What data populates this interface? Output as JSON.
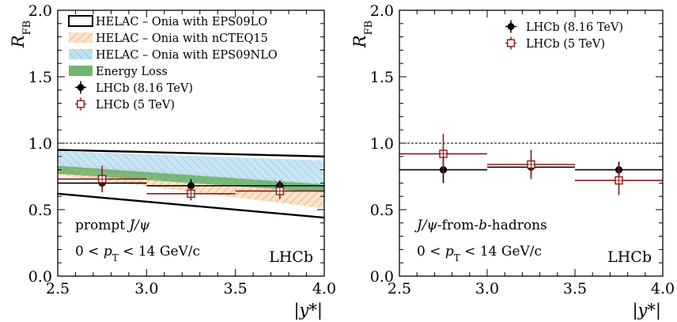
{
  "chart_data": [
    {
      "type": "scatter",
      "panel": "left",
      "ylabel": "R_FB",
      "xlabel": "|y*|",
      "xlim": [
        2.5,
        4.0
      ],
      "ylim": [
        0.0,
        2.0
      ],
      "xticks": [
        "2.5",
        "3.0",
        "3.5",
        "4.0"
      ],
      "yticks": [
        "0.0",
        "0.5",
        "1.0",
        "1.5",
        "2.0"
      ],
      "reference_line": 1.0,
      "legend": [
        {
          "label": "HELAC – Onia with EPS09LO",
          "style": "band-outline"
        },
        {
          "label": "HELAC – Onia with nCTEQ15",
          "style": "hatch-orange"
        },
        {
          "label": "HELAC – Onia with EPS09NLO",
          "style": "hatch-blue"
        },
        {
          "label": "Energy Loss",
          "style": "band-green"
        },
        {
          "label": "LHCb (8.16 TeV)",
          "style": "marker-filled"
        },
        {
          "label": "LHCb (5 TeV)",
          "style": "marker-open"
        }
      ],
      "annotations": [
        "prompt J/ψ",
        "0 < pT < 14 GeV/c",
        "LHCb"
      ],
      "bands": [
        {
          "name": "HELAC – Onia with EPS09LO",
          "x": [
            2.5,
            4.0
          ],
          "upper": [
            0.95,
            0.9
          ],
          "lower": [
            0.62,
            0.44
          ],
          "color": "#000000"
        },
        {
          "name": "HELAC – Onia with nCTEQ15",
          "x": [
            2.5,
            4.0
          ],
          "upper": [
            0.86,
            0.7
          ],
          "lower": [
            0.76,
            0.51
          ],
          "color": "#f0b27a"
        },
        {
          "name": "HELAC – Onia with EPS09NLO",
          "x": [
            2.5,
            4.0
          ],
          "upper": [
            0.94,
            0.87
          ],
          "lower": [
            0.82,
            0.63
          ],
          "color": "#a9d6ea"
        },
        {
          "name": "Energy Loss",
          "x": [
            2.5,
            4.0
          ],
          "upper": [
            0.83,
            0.69
          ],
          "lower": [
            0.77,
            0.63
          ],
          "color": "#5aaa5a"
        }
      ],
      "series": [
        {
          "name": "LHCb (8.16 TeV)",
          "marker": "filled-circle",
          "color": "#000000",
          "points": [
            {
              "x": 2.75,
              "xerr": 0.25,
              "y": 0.7,
              "yerr": 0.06
            },
            {
              "x": 3.25,
              "xerr": 0.25,
              "y": 0.68,
              "yerr": 0.05
            },
            {
              "x": 3.75,
              "xerr": 0.25,
              "y": 0.68,
              "yerr": 0.04
            }
          ]
        },
        {
          "name": "LHCb (5 TeV)",
          "marker": "open-square",
          "color": "#8b1a1a",
          "points": [
            {
              "x": 2.75,
              "xerr": 0.25,
              "y": 0.73,
              "yerr": 0.1
            },
            {
              "x": 3.25,
              "xerr": 0.25,
              "y": 0.62,
              "yerr": 0.05
            },
            {
              "x": 3.75,
              "xerr": 0.25,
              "y": 0.64,
              "yerr": 0.06
            }
          ]
        }
      ]
    },
    {
      "type": "scatter",
      "panel": "right",
      "ylabel": "R_FB",
      "xlabel": "|y*|",
      "xlim": [
        2.5,
        4.0
      ],
      "ylim": [
        0.0,
        2.0
      ],
      "xticks": [
        "2.5",
        "3.0",
        "3.5",
        "4.0"
      ],
      "yticks": [
        "0.0",
        "0.5",
        "1.0",
        "1.5",
        "2.0"
      ],
      "reference_line": 1.0,
      "legend": [
        {
          "label": "LHCb (8.16 TeV)",
          "style": "marker-filled"
        },
        {
          "label": "LHCb (5 TeV)",
          "style": "marker-open"
        }
      ],
      "annotations": [
        "J/ψ-from-b-hadrons",
        "0 < pT < 14 GeV/c",
        "LHCb"
      ],
      "bands": [],
      "series": [
        {
          "name": "LHCb (8.16 TeV)",
          "marker": "filled-circle",
          "color": "#000000",
          "points": [
            {
              "x": 2.75,
              "xerr": 0.25,
              "y": 0.8,
              "yerr": 0.1
            },
            {
              "x": 3.25,
              "xerr": 0.25,
              "y": 0.82,
              "yerr": 0.06
            },
            {
              "x": 3.75,
              "xerr": 0.25,
              "y": 0.8,
              "yerr": 0.06
            }
          ]
        },
        {
          "name": "LHCb (5 TeV)",
          "marker": "open-square",
          "color": "#8b1a1a",
          "points": [
            {
              "x": 2.75,
              "xerr": 0.25,
              "y": 0.92,
              "yerr": 0.15
            },
            {
              "x": 3.25,
              "xerr": 0.25,
              "y": 0.84,
              "yerr": 0.11
            },
            {
              "x": 3.75,
              "xerr": 0.25,
              "y": 0.72,
              "yerr": 0.11
            }
          ]
        }
      ]
    }
  ]
}
